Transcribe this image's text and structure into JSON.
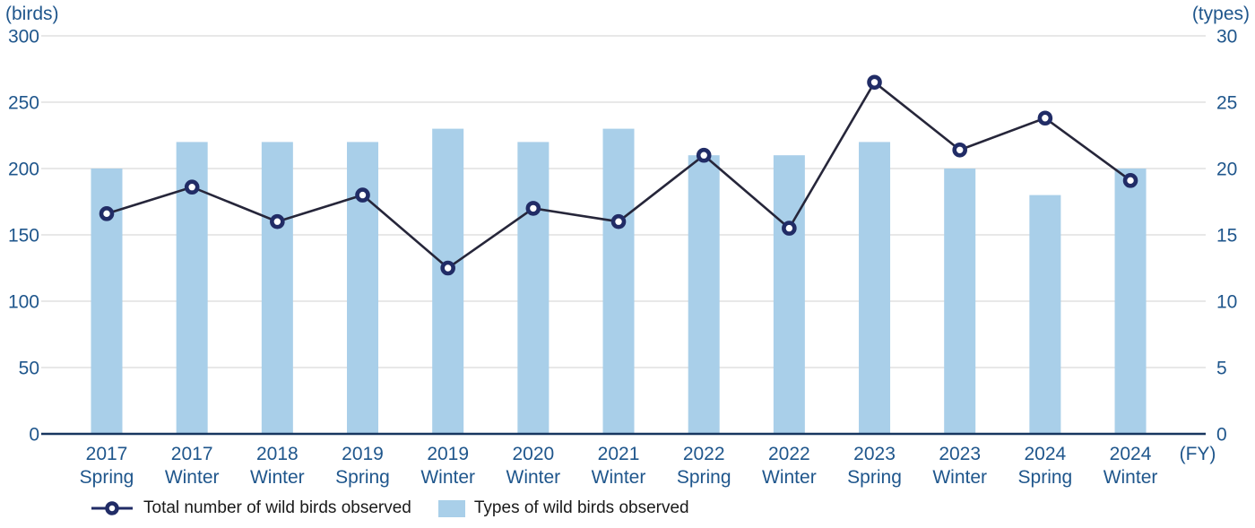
{
  "chart_data": {
    "type": "combo",
    "title": "",
    "x_axis": {
      "unit_label": "(FY)",
      "categories": [
        "2017 Spring",
        "2017 Winter",
        "2018 Winter",
        "2019 Spring",
        "2019 Winter",
        "2020 Winter",
        "2021 Winter",
        "2022 Spring",
        "2022 Winter",
        "2023 Spring",
        "2023 Winter",
        "2024 Spring",
        "2024 Winter"
      ]
    },
    "left_axis": {
      "unit_label": "(birds)",
      "min": 0,
      "max": 300,
      "tick_step": 50,
      "ticks": [
        0,
        50,
        100,
        150,
        200,
        250,
        300
      ]
    },
    "right_axis": {
      "unit_label": "(types)",
      "min": 0,
      "max": 30,
      "tick_step": 5,
      "ticks": [
        0,
        5,
        10,
        15,
        20,
        25,
        30
      ]
    },
    "series": [
      {
        "name": "Total number of wild birds observed",
        "type": "line",
        "axis": "left",
        "marker": "open-circle",
        "values": [
          166,
          186,
          160,
          180,
          125,
          170,
          160,
          210,
          155,
          265,
          214,
          238,
          191
        ]
      },
      {
        "name": "Types of wild birds observed",
        "type": "bar",
        "axis": "right",
        "values": [
          20,
          22,
          22,
          22,
          23,
          22,
          23,
          21,
          21,
          22,
          20,
          18,
          20
        ]
      }
    ],
    "grid": true,
    "legend_position": "bottom-left"
  },
  "colors": {
    "axis_text": "#1f568c",
    "gridline": "#d9d9d9",
    "axis_line": "#17365f",
    "bar_fill": "#a9cfe9",
    "line": "#26263a",
    "marker_stroke": "#212c66",
    "marker_fill": "#ffffff",
    "legend_text": "#1a1a1a"
  }
}
